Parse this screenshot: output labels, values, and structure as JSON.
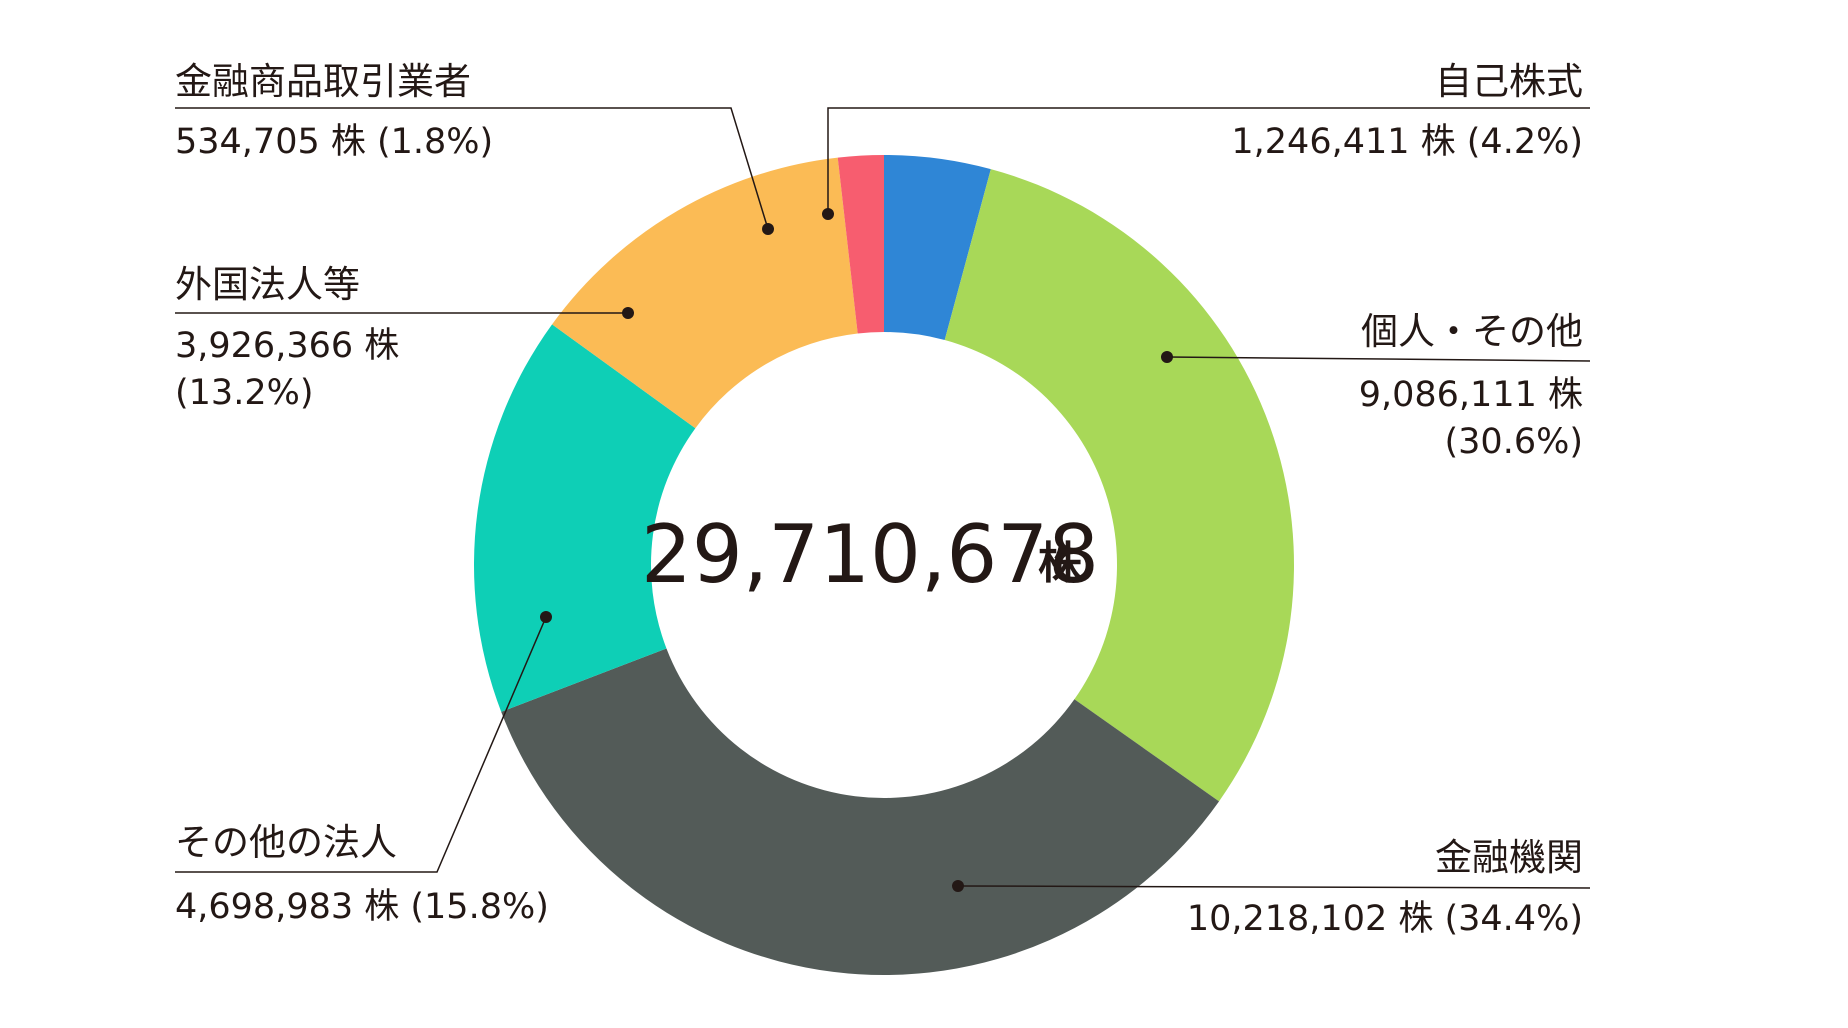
{
  "chart_data": {
    "type": "pie",
    "total_value": "29,710,678",
    "total_unit": "株",
    "slices": [
      {
        "name": "自己株式",
        "value": 1246411,
        "value_label": "1,246,411 株 (4.2%)",
        "color": "#2f86d6"
      },
      {
        "name": "個人・その他",
        "value": 9086111,
        "value_label_1": "9,086,111 株",
        "value_label_2": "(30.6%)",
        "color": "#a8d858"
      },
      {
        "name": "金融機関",
        "value": 10218102,
        "value_label": "10,218,102 株 (34.4%)",
        "color": "#535b58"
      },
      {
        "name": "その他の法人",
        "value": 4698983,
        "value_label": "4,698,983 株 (15.8%)",
        "color": "#0ecfb6"
      },
      {
        "name": "外国法人等",
        "value": 3926366,
        "value_label_1": "3,926,366 株",
        "value_label_2": "(13.2%)",
        "color": "#fbbb55"
      },
      {
        "name": "金融商品取引業者",
        "value": 534705,
        "value_label": "534,705 株 (1.8%)",
        "color": "#f75d6f"
      }
    ]
  }
}
